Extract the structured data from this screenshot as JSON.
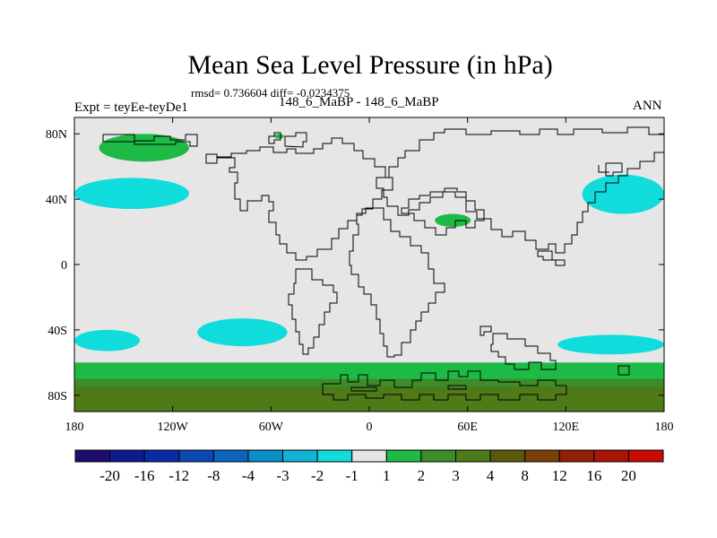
{
  "chart_data": {
    "type": "heatmap",
    "title": "Mean Sea Level Pressure (in hPa)",
    "subtitle": "rmsd= 0.736604 diff= -0.0234375",
    "left_label": "Expt = teyEe-teyDe1",
    "center_label": "148_6_MaBP - 148_6_MaBP",
    "right_label": "ANN",
    "x_ticks": [
      "180",
      "120W",
      "60W",
      "0",
      "60E",
      "120E",
      "180"
    ],
    "x_tick_values": [
      -180,
      -120,
      -60,
      0,
      60,
      120,
      180
    ],
    "y_ticks": [
      "80N",
      "40N",
      "0",
      "40S",
      "80S"
    ],
    "y_tick_values": [
      80,
      40,
      0,
      -40,
      -80
    ],
    "xlim": [
      -180,
      180
    ],
    "ylim": [
      -90,
      90
    ],
    "colorbar": {
      "labels": [
        "-20",
        "-16",
        "-12",
        "-8",
        "-4",
        "-3",
        "-2",
        "-1",
        "1",
        "2",
        "3",
        "4",
        "8",
        "12",
        "16",
        "20"
      ],
      "colors": [
        "#1e0c6e",
        "#0f1a90",
        "#0a2aa6",
        "#0a48b4",
        "#0a64c0",
        "#0a8ec8",
        "#12b4d6",
        "#10dcdc",
        "#e6e6e6",
        "#1eba46",
        "#3c8c2a",
        "#4e7a18",
        "#5a5a0a",
        "#7a4008",
        "#922006",
        "#aa1404",
        "#c80a00"
      ]
    },
    "regions": [
      {
        "name": "background",
        "category": "-1 to 1",
        "color": "#e6e6e6",
        "lon": [
          -180,
          180
        ],
        "lat": [
          -90,
          90
        ]
      },
      {
        "name": "arctic-pacific-high",
        "category": "1 to 2",
        "color": "#1eba46",
        "lon": [
          -165,
          -110
        ],
        "lat": [
          63,
          80
        ]
      },
      {
        "name": "arctic-islet",
        "category": "1 to 2",
        "color": "#1eba46",
        "lon": [
          -58,
          -52
        ],
        "lat": [
          77,
          80
        ]
      },
      {
        "name": "central-asia-high",
        "category": "1 to 2",
        "color": "#1eba46",
        "lon": [
          40,
          62
        ],
        "lat": [
          23,
          31
        ]
      },
      {
        "name": "north-pacific-low-east",
        "category": "-2 to -1",
        "color": "#10dcdc",
        "lon": [
          -180,
          -110
        ],
        "lat": [
          34,
          53
        ]
      },
      {
        "name": "north-pacific-low-west",
        "category": "-2 to -1",
        "color": "#10dcdc",
        "lon": [
          130,
          180
        ],
        "lat": [
          31,
          55
        ]
      },
      {
        "name": "south-pacific-low-1",
        "category": "-2 to -1",
        "color": "#10dcdc",
        "lon": [
          -180,
          -140
        ],
        "lat": [
          -53,
          -40
        ]
      },
      {
        "name": "south-pacific-low-2",
        "category": "-2 to -1",
        "color": "#10dcdc",
        "lon": [
          -105,
          -50
        ],
        "lat": [
          -50,
          -33
        ]
      },
      {
        "name": "south-indian-low",
        "category": "-2 to -1",
        "color": "#10dcdc",
        "lon": [
          115,
          180
        ],
        "lat": [
          -55,
          -43
        ]
      },
      {
        "name": "southern-ocean-band",
        "category": "1 to 2",
        "color": "#1eba46",
        "lon": [
          -180,
          180
        ],
        "lat": [
          -90,
          -60
        ]
      },
      {
        "name": "antarctic-band",
        "category": "2 to 3",
        "color": "#3c8c2a",
        "lon": [
          -180,
          180
        ],
        "lat": [
          -90,
          -70
        ]
      },
      {
        "name": "antarctic-core",
        "category": "3 to 4",
        "color": "#4e7a18",
        "lon": [
          -180,
          180
        ],
        "lat": [
          -90,
          -75
        ]
      }
    ]
  },
  "colors": {
    "neutral": "#e6e6e6",
    "positive_small": "#1eba46",
    "negative_small": "#10dcdc",
    "coastline": "#000000"
  }
}
